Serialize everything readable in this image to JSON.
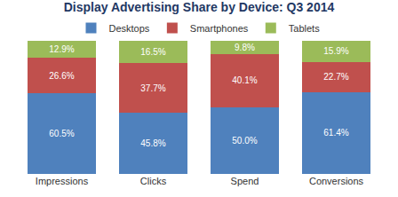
{
  "chart_data": {
    "type": "bar",
    "title": "Display Advertising Share by Device: Q3 2014",
    "categories": [
      "Impressions",
      "Clicks",
      "Spend",
      "Conversions"
    ],
    "series": [
      {
        "name": "Desktops",
        "color": "#4f81bd",
        "values": [
          60.5,
          45.8,
          50.0,
          61.4
        ],
        "value_labels": [
          "60.5%",
          "45.8%",
          "50.0%",
          "61.4%"
        ]
      },
      {
        "name": "Smartphones",
        "color": "#c0504d",
        "values": [
          26.6,
          37.7,
          40.1,
          22.7
        ],
        "value_labels": [
          "26.6%",
          "37.7%",
          "40.1%",
          "22.7%"
        ]
      },
      {
        "name": "Tablets",
        "color": "#9bbb59",
        "values": [
          12.9,
          16.5,
          9.8,
          15.9
        ],
        "value_labels": [
          "12.9%",
          "16.5%",
          "9.8%",
          "15.9%"
        ]
      }
    ],
    "ylim": [
      0,
      100
    ],
    "stacked": true,
    "data_labels": true,
    "grid": false,
    "legend": "top",
    "tick_labels": "x"
  }
}
